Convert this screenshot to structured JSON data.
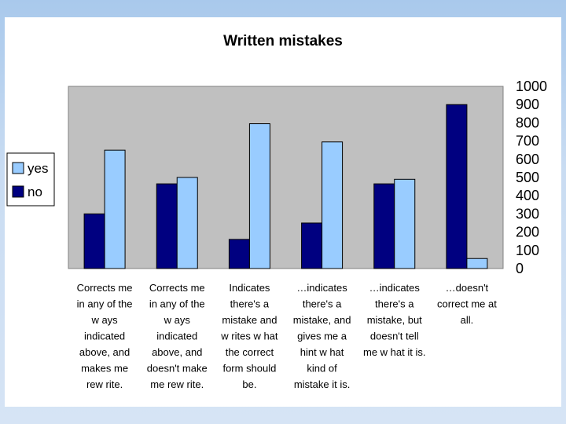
{
  "chart_data": {
    "type": "bar",
    "title": "Written mistakes",
    "ylim": [
      0,
      1000
    ],
    "yticks": [
      "0",
      "100",
      "200",
      "300",
      "400",
      "500",
      "600",
      "700",
      "800",
      "900",
      "1000"
    ],
    "grid": false,
    "legend_position": "left",
    "categories": [
      [
        "Corrects me",
        "in any of the",
        "w ays",
        "indicated",
        "above, and",
        "makes me",
        "rew rite."
      ],
      [
        "Corrects me",
        "in any of the",
        "w ays",
        "indicated",
        "above, and",
        "doesn't make",
        "me rew rite."
      ],
      [
        "Indicates",
        "there's a",
        "mistake and",
        "w rites w hat",
        "the correct",
        "form should",
        "be."
      ],
      [
        "…indicates",
        "there's a",
        "mistake, and",
        "gives me a",
        "hint w hat",
        "kind of",
        "mistake it is."
      ],
      [
        "…indicates",
        "there's a",
        "mistake, but",
        "doesn't tell",
        "me w hat it is."
      ],
      [
        "…doesn't",
        "correct me at",
        "all."
      ]
    ],
    "series": [
      {
        "name": "no",
        "color": "#000080",
        "values": [
          300,
          465,
          160,
          250,
          465,
          900
        ]
      },
      {
        "name": "yes",
        "color": "#99ccff",
        "values": [
          650,
          500,
          795,
          695,
          490,
          55
        ]
      }
    ]
  }
}
